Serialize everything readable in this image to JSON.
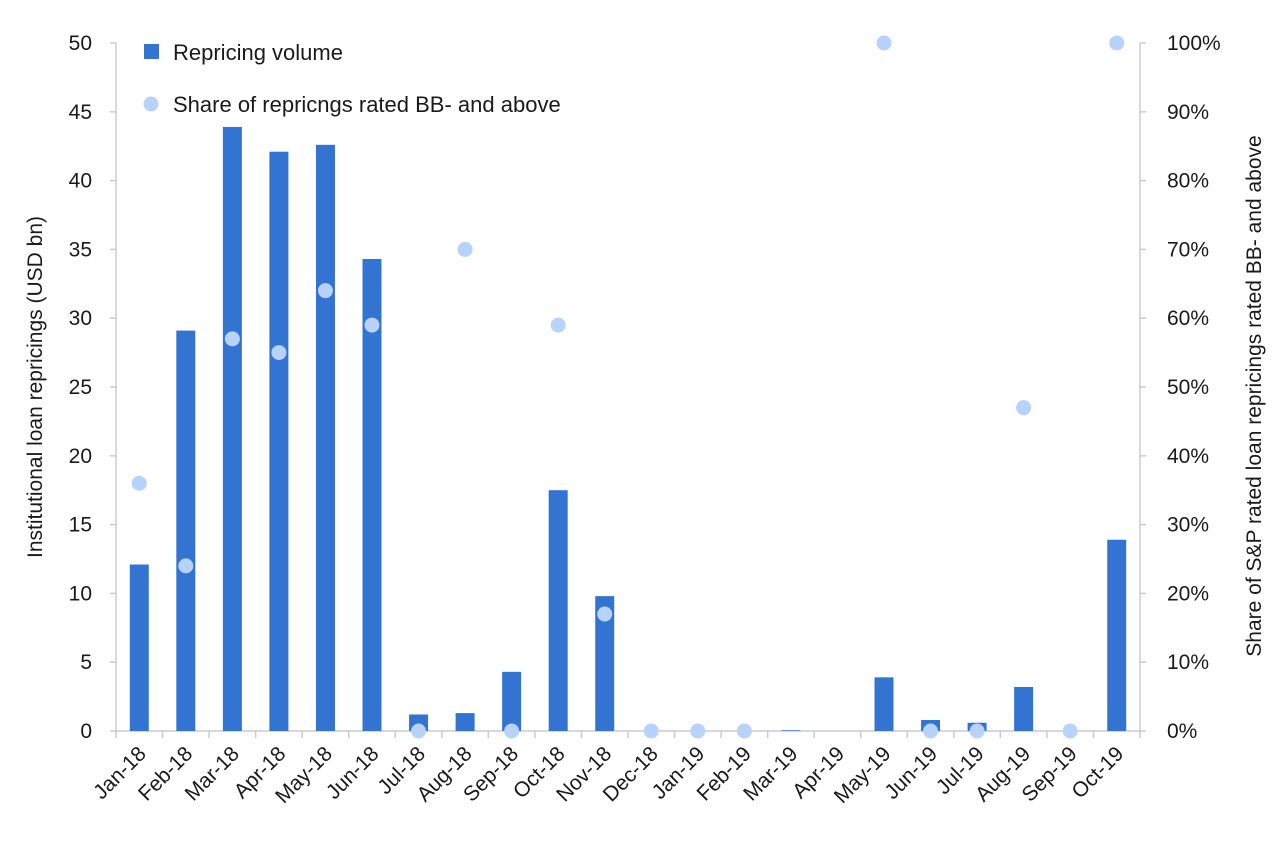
{
  "chart_data": {
    "type": "bar",
    "categories": [
      "Jan-18",
      "Feb-18",
      "Mar-18",
      "Apr-18",
      "May-18",
      "Jun-18",
      "Jul-18",
      "Aug-18",
      "Sep-18",
      "Oct-18",
      "Nov-18",
      "Dec-18",
      "Jan-19",
      "Feb-19",
      "Mar-19",
      "Apr-19",
      "May-19",
      "Jun-19",
      "Jul-19",
      "Aug-19",
      "Sep-19",
      "Oct-19"
    ],
    "series": [
      {
        "name": "Repricing volume",
        "type": "bar",
        "axis": "left",
        "color": "#3373d2",
        "values": [
          12.1,
          29.1,
          43.9,
          42.1,
          42.6,
          34.3,
          1.2,
          1.3,
          4.3,
          17.5,
          9.8,
          0,
          0,
          0,
          0.05,
          0,
          3.9,
          0.8,
          0.6,
          3.2,
          0,
          13.9
        ]
      },
      {
        "name": "Share of repricngs rated BB- and above",
        "type": "scatter",
        "axis": "right",
        "color": "#b7d2fb",
        "values": [
          36,
          24,
          57,
          55,
          64,
          59,
          0,
          70,
          0,
          59,
          17,
          0,
          0,
          0,
          null,
          null,
          100,
          0,
          0,
          47,
          0,
          100
        ]
      }
    ],
    "ylabel": "Institutional loan repricings (USD bn)",
    "y2label": "Share of S&P rated loan repricings rated BB- and above",
    "ylim": [
      0,
      50
    ],
    "yticks": [
      0,
      5,
      10,
      15,
      20,
      25,
      30,
      35,
      40,
      45,
      50
    ],
    "y2lim": [
      0,
      100
    ],
    "y2ticks": [
      "0%",
      "10%",
      "20%",
      "30%",
      "40%",
      "50%",
      "60%",
      "70%",
      "80%",
      "90%",
      "100%"
    ],
    "grid": false,
    "legend": "top-left"
  }
}
